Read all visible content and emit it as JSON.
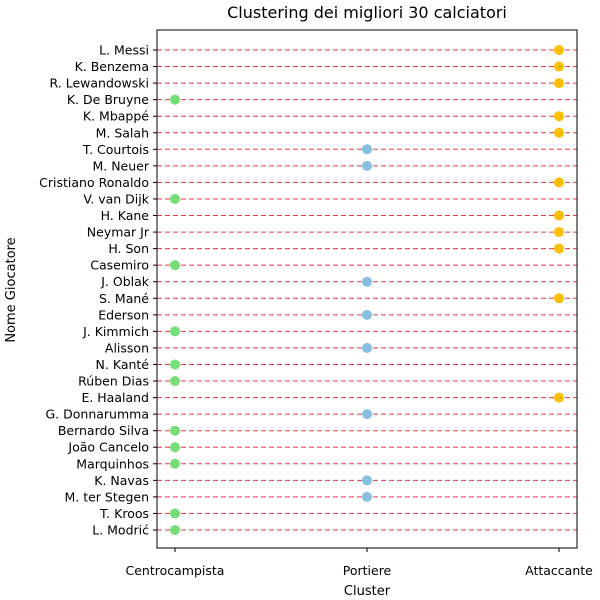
{
  "chart_data": {
    "type": "scatter",
    "title": "Clustering dei migliori 30 calciatori",
    "xlabel": "Cluster",
    "ylabel": "Nome Giocatore",
    "x_categories": [
      "Centrocampista",
      "Portiere",
      "Attaccante"
    ],
    "colors": {
      "Centrocampista": "#77dd77",
      "Portiere": "#87bfe0",
      "Attaccante": "#ffbf00",
      "gridline": "#e41a1c"
    },
    "grid": "horizontal dashed lines per player",
    "points": [
      {
        "player": "L. Messi",
        "cluster": "Attaccante"
      },
      {
        "player": "K. Benzema",
        "cluster": "Attaccante"
      },
      {
        "player": "R. Lewandowski",
        "cluster": "Attaccante"
      },
      {
        "player": "K. De Bruyne",
        "cluster": "Centrocampista"
      },
      {
        "player": "K. Mbappé",
        "cluster": "Attaccante"
      },
      {
        "player": "M. Salah",
        "cluster": "Attaccante"
      },
      {
        "player": "T. Courtois",
        "cluster": "Portiere"
      },
      {
        "player": "M. Neuer",
        "cluster": "Portiere"
      },
      {
        "player": "Cristiano Ronaldo",
        "cluster": "Attaccante"
      },
      {
        "player": "V. van Dijk",
        "cluster": "Centrocampista"
      },
      {
        "player": "H. Kane",
        "cluster": "Attaccante"
      },
      {
        "player": "Neymar Jr",
        "cluster": "Attaccante"
      },
      {
        "player": "H. Son",
        "cluster": "Attaccante"
      },
      {
        "player": "Casemiro",
        "cluster": "Centrocampista"
      },
      {
        "player": "J. Oblak",
        "cluster": "Portiere"
      },
      {
        "player": "S. Mané",
        "cluster": "Attaccante"
      },
      {
        "player": "Ederson",
        "cluster": "Portiere"
      },
      {
        "player": "J. Kimmich",
        "cluster": "Centrocampista"
      },
      {
        "player": "Alisson",
        "cluster": "Portiere"
      },
      {
        "player": "N. Kanté",
        "cluster": "Centrocampista"
      },
      {
        "player": "Rúben Dias",
        "cluster": "Centrocampista"
      },
      {
        "player": "E. Haaland",
        "cluster": "Attaccante"
      },
      {
        "player": "G. Donnarumma",
        "cluster": "Portiere"
      },
      {
        "player": "Bernardo Silva",
        "cluster": "Centrocampista"
      },
      {
        "player": "João Cancelo",
        "cluster": "Centrocampista"
      },
      {
        "player": "Marquinhos",
        "cluster": "Centrocampista"
      },
      {
        "player": "K. Navas",
        "cluster": "Portiere"
      },
      {
        "player": "M. ter Stegen",
        "cluster": "Portiere"
      },
      {
        "player": "T. Kroos",
        "cluster": "Centrocampista"
      },
      {
        "player": "L. Modrić",
        "cluster": "Centrocampista"
      }
    ]
  }
}
